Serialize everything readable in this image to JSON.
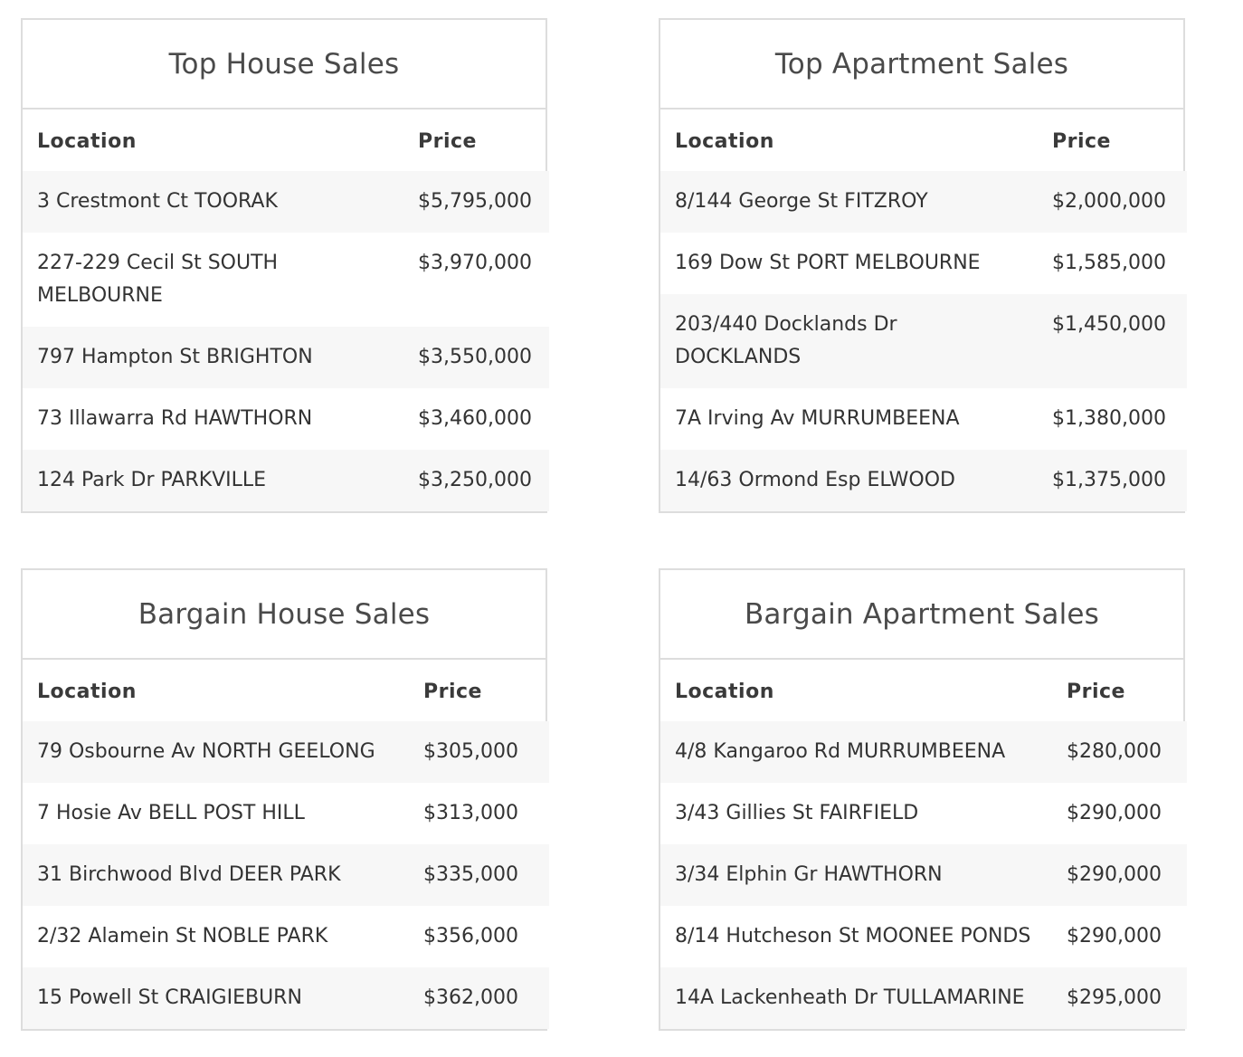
{
  "tables": {
    "top_house": {
      "title": "Top House Sales",
      "col_location": "Location",
      "col_price": "Price",
      "rows": [
        {
          "location": "3 Crestmont Ct TOORAK",
          "price": "$5,795,000"
        },
        {
          "location": "227-229 Cecil St SOUTH MELBOURNE",
          "price": "$3,970,000"
        },
        {
          "location": "797 Hampton St BRIGHTON",
          "price": "$3,550,000"
        },
        {
          "location": "73 Illawarra Rd HAWTHORN",
          "price": "$3,460,000"
        },
        {
          "location": "124 Park Dr PARKVILLE",
          "price": "$3,250,000"
        }
      ]
    },
    "top_apartment": {
      "title": "Top Apartment Sales",
      "col_location": "Location",
      "col_price": "Price",
      "rows": [
        {
          "location": "8/144 George St FITZROY",
          "price": "$2,000,000"
        },
        {
          "location": "169 Dow St PORT MELBOURNE",
          "price": "$1,585,000"
        },
        {
          "location": "203/440 Docklands Dr DOCKLANDS",
          "price": "$1,450,000"
        },
        {
          "location": "7A Irving Av MURRUMBEENA",
          "price": "$1,380,000"
        },
        {
          "location": "14/63 Ormond Esp ELWOOD",
          "price": "$1,375,000"
        }
      ]
    },
    "bargain_house": {
      "title": "Bargain House Sales",
      "col_location": "Location",
      "col_price": "Price",
      "rows": [
        {
          "location": "79 Osbourne Av NORTH GEELONG",
          "price": "$305,000"
        },
        {
          "location": "7 Hosie Av BELL POST HILL",
          "price": "$313,000"
        },
        {
          "location": "31 Birchwood Blvd DEER PARK",
          "price": "$335,000"
        },
        {
          "location": "2/32 Alamein St NOBLE PARK",
          "price": "$356,000"
        },
        {
          "location": "15 Powell St CRAIGIEBURN",
          "price": "$362,000"
        }
      ]
    },
    "bargain_apartment": {
      "title": "Bargain Apartment Sales",
      "col_location": "Location",
      "col_price": "Price",
      "rows": [
        {
          "location": "4/8 Kangaroo Rd MURRUMBEENA",
          "price": "$280,000"
        },
        {
          "location": "3/43 Gillies St FAIRFIELD",
          "price": "$290,000"
        },
        {
          "location": "3/34 Elphin Gr HAWTHORN",
          "price": "$290,000"
        },
        {
          "location": "8/14 Hutcheson St MOONEE PONDS",
          "price": "$290,000"
        },
        {
          "location": "14A Lackenheath Dr TULLAMARINE",
          "price": "$295,000"
        }
      ]
    }
  }
}
